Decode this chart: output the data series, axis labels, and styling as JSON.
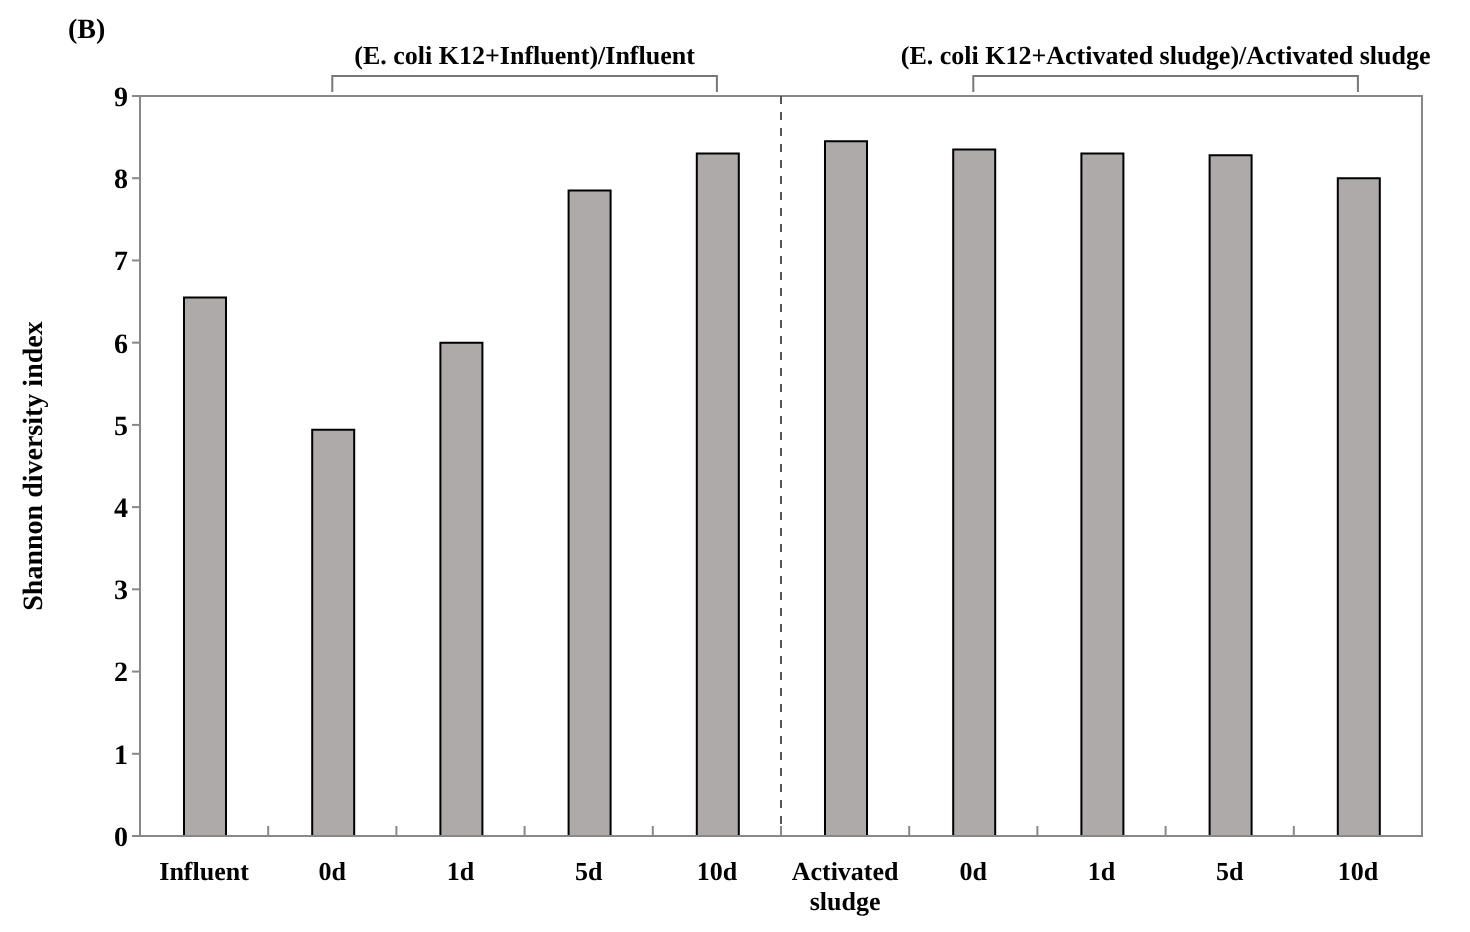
{
  "chart_data": {
    "type": "bar",
    "title": "(B)",
    "ylabel": "Shannon diversity index",
    "categories": [
      "Influent",
      "0d",
      "1d",
      "5d",
      "10d",
      "Activated sludge",
      "0d",
      "1d",
      "5d",
      "10d"
    ],
    "values": [
      6.55,
      4.94,
      6.0,
      7.85,
      8.3,
      8.45,
      8.35,
      8.3,
      8.28,
      8.0
    ],
    "color": "#aeaaaa",
    "ylim": [
      0,
      9
    ],
    "yticks": [
      0,
      1,
      2,
      3,
      4,
      5,
      6,
      7,
      8,
      9
    ],
    "grid": false,
    "legend": false,
    "annotations": [
      "(E. coli K12+Influent)/Influent",
      "(E. coli K12+Activated sludge)/Activated sludge"
    ]
  }
}
